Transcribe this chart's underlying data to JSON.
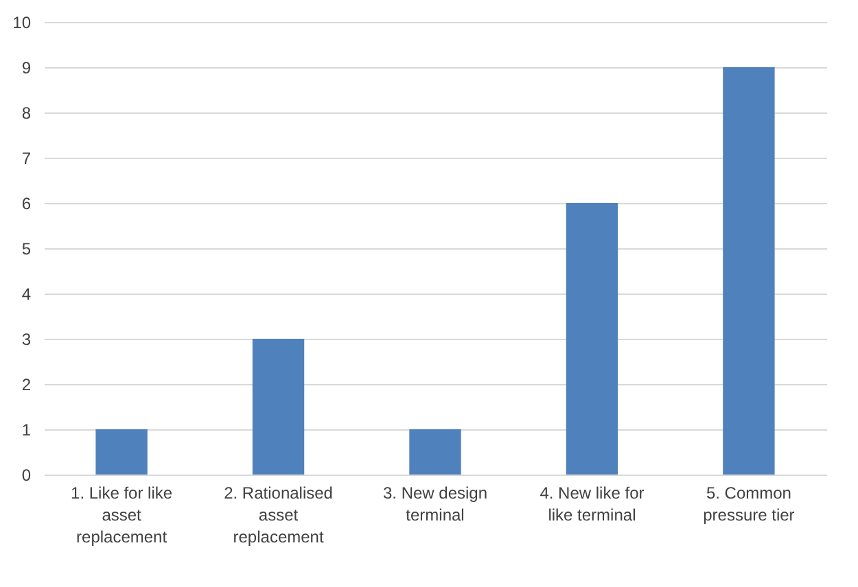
{
  "chart_data": {
    "type": "bar",
    "categories": [
      "1. Like for like asset replacement",
      "2. Rationalised asset replacement",
      "3. New design terminal",
      "4. New like for like terminal",
      "5. Common pressure tier"
    ],
    "values": [
      1,
      3,
      1,
      6,
      9
    ],
    "color": "#4f81bd",
    "ylim": [
      0,
      10
    ],
    "yticks": [
      0,
      1,
      2,
      3,
      4,
      5,
      6,
      7,
      8,
      9,
      10
    ],
    "grid": "y"
  }
}
